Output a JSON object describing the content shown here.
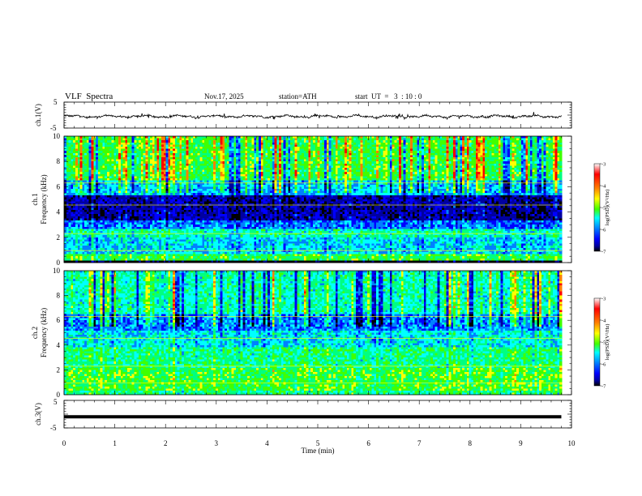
{
  "header": {
    "title": "VLF  Spectra",
    "date": "Nov.17, 2025",
    "station": "station=ATH",
    "start": "start  UT  =   3  : 10 : 0"
  },
  "chart_data": [
    {
      "type": "line",
      "name": "ch1-waveform",
      "ylabel": "ch.1(V)",
      "ylim": [
        -5,
        5
      ],
      "yticks": [
        "5",
        "-5"
      ],
      "xlim": [
        0,
        10
      ],
      "x_end": 9.8,
      "series_description": "noisy waveform near 0 V with spikes"
    },
    {
      "type": "heatmap",
      "name": "ch1-spectrogram",
      "ylabel_channel": "ch.1",
      "ylabel": "Frequency  (kHz)",
      "ylim": [
        0,
        10
      ],
      "yticks": [
        "0",
        "2",
        "4",
        "6",
        "8",
        "10"
      ],
      "xlim": [
        0,
        10
      ],
      "x_end": 9.8,
      "colorbar": {
        "label": "log(PSD)(V²/Hz)",
        "range": [
          -7,
          -3
        ],
        "ticks": [
          "-3",
          "-4",
          "-5",
          "-6",
          "-7"
        ]
      }
    },
    {
      "type": "heatmap",
      "name": "ch2-spectrogram",
      "ylabel_channel": "ch.2",
      "ylabel": "Frequency  (kHz)",
      "ylim": [
        0,
        10
      ],
      "yticks": [
        "0",
        "2",
        "4",
        "6",
        "8",
        "10"
      ],
      "xlim": [
        0,
        10
      ],
      "x_end": 9.8,
      "colorbar": {
        "label": "log(PSD)(V²/Hz)",
        "range": [
          -7,
          -3
        ],
        "ticks": [
          "-3",
          "-4",
          "-5",
          "-6",
          "-7"
        ]
      }
    },
    {
      "type": "line",
      "name": "ch3-waveform",
      "ylabel": "ch.3(V)",
      "ylim": [
        -5,
        5
      ],
      "yticks": [
        "5",
        "-5"
      ],
      "xlim": [
        0,
        10
      ],
      "x_end": 9.8,
      "constant_value": -0.5,
      "xlabel": "Time  (min)",
      "xticks": [
        "0",
        "1",
        "2",
        "3",
        "4",
        "5",
        "6",
        "7",
        "8",
        "9",
        "10"
      ]
    }
  ],
  "colors": {
    "waveform": "#000000",
    "colormap": [
      "#000000",
      "#0000a0",
      "#0000ff",
      "#0080ff",
      "#00ffff",
      "#00ff80",
      "#40ff00",
      "#ffff00",
      "#ff8000",
      "#ff0000",
      "#ffffff"
    ]
  }
}
